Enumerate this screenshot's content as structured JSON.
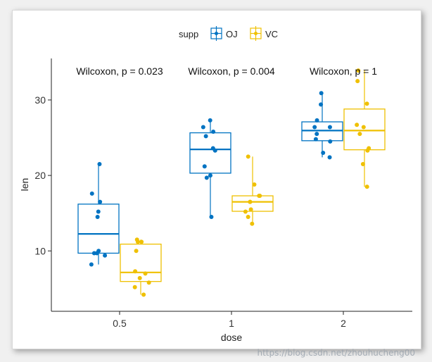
{
  "chart_data": {
    "type": "boxplot",
    "title": "",
    "xlabel": "dose",
    "ylabel": "len",
    "categories": [
      "0.5",
      "1",
      "2"
    ],
    "ylim": [
      2,
      35.5
    ],
    "yticks": [
      10,
      20,
      30
    ],
    "legend": {
      "title": "supp",
      "position": "top",
      "entries": [
        {
          "name": "OJ",
          "color": "#0073C2"
        },
        {
          "name": "VC",
          "color": "#EFC000"
        }
      ]
    },
    "annotations": [
      "Wilcoxon, p = 0.023",
      "Wilcoxon, p = 0.004",
      "Wilcoxon, p = 1"
    ],
    "series": [
      {
        "name": "OJ",
        "color": "#0073C2",
        "boxes": [
          {
            "q1": 9.7,
            "median": 12.25,
            "q3": 16.2,
            "whisker_low": 8.2,
            "whisker_high": 21.5
          },
          {
            "q1": 20.3,
            "median": 23.45,
            "q3": 25.65,
            "whisker_low": 14.5,
            "whisker_high": 27.3
          },
          {
            "q1": 24.6,
            "median": 25.95,
            "q3": 27.1,
            "whisker_low": 22.4,
            "whisker_high": 30.9
          }
        ],
        "points": [
          [
            15.2,
            21.5,
            17.6,
            9.7,
            14.5,
            10.0,
            8.2,
            9.4,
            16.5,
            9.7
          ],
          [
            19.7,
            23.3,
            23.6,
            26.4,
            20.0,
            25.2,
            25.8,
            21.2,
            14.5,
            27.3
          ],
          [
            25.5,
            26.4,
            22.4,
            24.5,
            24.8,
            30.9,
            26.4,
            27.3,
            29.4,
            23.0
          ]
        ]
      },
      {
        "name": "VC",
        "color": "#EFC000",
        "boxes": [
          {
            "q1": 5.95,
            "median": 7.15,
            "q3": 10.9,
            "whisker_low": 4.2,
            "whisker_high": 11.5
          },
          {
            "q1": 15.25,
            "median": 16.5,
            "q3": 17.3,
            "whisker_low": 13.6,
            "whisker_high": 22.5
          },
          {
            "q1": 23.4,
            "median": 25.95,
            "q3": 28.8,
            "whisker_low": 18.5,
            "whisker_high": 33.9
          }
        ],
        "points": [
          [
            4.2,
            11.5,
            7.3,
            5.8,
            6.4,
            10.0,
            11.2,
            11.2,
            5.2,
            7.0
          ],
          [
            16.5,
            16.5,
            15.2,
            17.3,
            22.5,
            17.3,
            13.6,
            14.5,
            18.8,
            15.5
          ],
          [
            23.6,
            18.5,
            33.9,
            25.5,
            26.4,
            32.5,
            26.7,
            21.5,
            23.3,
            29.5
          ]
        ]
      }
    ]
  },
  "watermark": "https://blog.csdn.net/zhouhucheng00"
}
